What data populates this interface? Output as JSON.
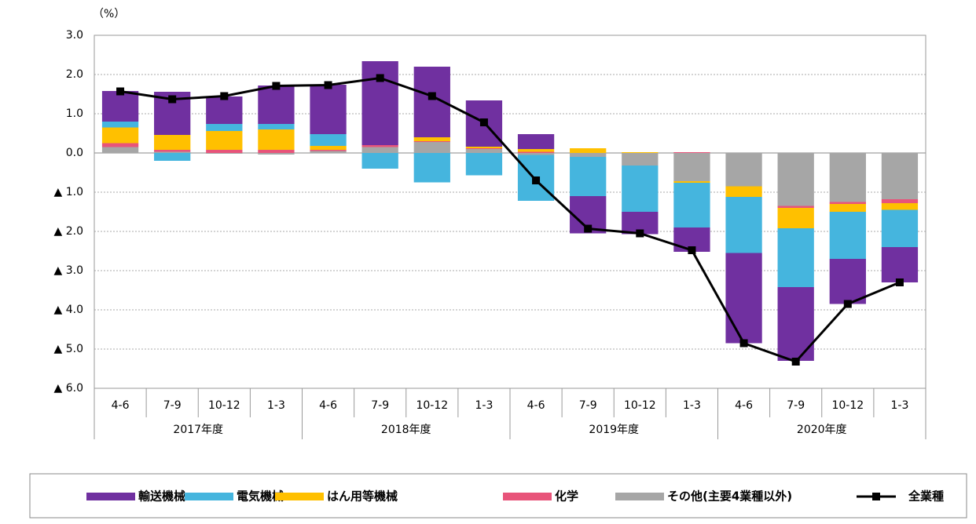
{
  "chart_data": {
    "type": "bar",
    "stacked": true,
    "y_unit_label": "（%）",
    "categories": [
      "4-6",
      "7-9",
      "10-12",
      "1-3",
      "4-6",
      "7-9",
      "10-12",
      "1-3",
      "4-6",
      "7-9",
      "10-12",
      "1-3",
      "4-6",
      "7-9",
      "10-12",
      "1-3"
    ],
    "groups": [
      "2017年度",
      "2018年度",
      "2019年度",
      "2020年度"
    ],
    "ylim": [
      -6,
      3
    ],
    "yticks": [
      {
        "value": 3,
        "label": "3.0"
      },
      {
        "value": 2,
        "label": "2.0"
      },
      {
        "value": 1,
        "label": "1.0"
      },
      {
        "value": 0,
        "label": "0.0"
      },
      {
        "value": -1,
        "label": "▲ 1.0"
      },
      {
        "value": -2,
        "label": "▲ 2.0"
      },
      {
        "value": -3,
        "label": "▲ 3.0"
      },
      {
        "value": -4,
        "label": "▲ 4.0"
      },
      {
        "value": -5,
        "label": "▲ 5.0"
      },
      {
        "value": -6,
        "label": "▲ 6.0"
      }
    ],
    "grid": true,
    "series": [
      {
        "name": "輸送機械",
        "color": "#7030a0",
        "values": [
          0.78,
          1.1,
          0.7,
          0.98,
          1.26,
          2.14,
          1.8,
          1.18,
          0.38,
          -0.95,
          -0.57,
          -0.62,
          -2.3,
          -1.88,
          -1.15,
          -0.9
        ]
      },
      {
        "name": "電気機械",
        "color": "#45b5de",
        "values": [
          0.15,
          -0.2,
          0.18,
          0.14,
          0.3,
          -0.4,
          -0.75,
          -0.57,
          -1.17,
          -1.0,
          -1.18,
          -1.14,
          -1.43,
          -1.5,
          -1.2,
          -0.95
        ]
      },
      {
        "name": "はん用等機械",
        "color": "#ffc000",
        "values": [
          0.4,
          0.38,
          0.48,
          0.52,
          0.1,
          0,
          0.1,
          0.04,
          0.07,
          0.12,
          0.02,
          -0.04,
          -0.27,
          -0.52,
          -0.2,
          -0.17
        ]
      },
      {
        "name": "化学",
        "color": "#e8547a",
        "values": [
          0.1,
          0.05,
          0.08,
          0.08,
          0.03,
          0.05,
          0.02,
          0.02,
          0.03,
          0,
          0,
          0.02,
          0,
          -0.05,
          -0.05,
          -0.1
        ]
      },
      {
        "name": "その他(主要4業種以外)",
        "color": "#a6a6a6",
        "values": [
          0.15,
          0.03,
          -0.02,
          -0.04,
          0.05,
          0.15,
          0.28,
          0.1,
          -0.05,
          -0.1,
          -0.32,
          -0.72,
          -0.85,
          -1.35,
          -1.25,
          -1.18
        ]
      },
      {
        "name": "全業種",
        "color": "#000000",
        "type": "line",
        "values": [
          1.57,
          1.37,
          1.45,
          1.71,
          1.73,
          1.91,
          1.45,
          0.78,
          -0.7,
          -1.93,
          -2.05,
          -2.48,
          -4.85,
          -5.32,
          -3.85,
          -3.3
        ]
      }
    ]
  }
}
